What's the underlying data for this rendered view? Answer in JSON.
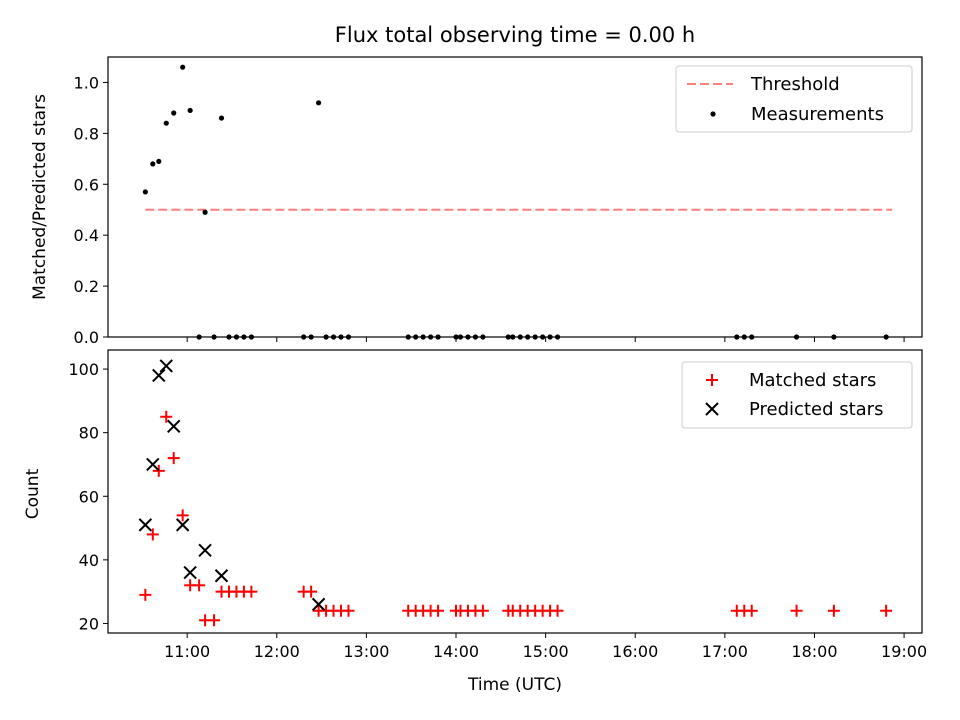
{
  "chart_data": [
    {
      "type": "scatter",
      "title": "Flux total observing time = 0.00 h",
      "xlabel": "",
      "ylabel": "Matched/Predicted stars",
      "ylim": [
        0,
        1.1
      ],
      "yticks": [
        "0.0",
        "0.2",
        "0.4",
        "0.6",
        "0.8",
        "1.0"
      ],
      "ytick_values": [
        0,
        0.2,
        0.4,
        0.6,
        0.8,
        1.0
      ],
      "xlim": [
        "10:07",
        "19:12"
      ],
      "xtick_values": [
        "11:00",
        "12:00",
        "13:00",
        "14:00",
        "15:00",
        "16:00",
        "17:00",
        "18:00",
        "19:00"
      ],
      "legend_position": "top-right",
      "series": [
        {
          "name": "Threshold",
          "style": "dashed-line",
          "color": "#ff7f7f",
          "x": [
            "10:32",
            "18:52"
          ],
          "y": [
            0.5,
            0.5
          ]
        },
        {
          "name": "Measurements",
          "style": "dot",
          "color": "#000000",
          "x": [
            "10:32",
            "10:37",
            "10:41",
            "10:46",
            "10:51",
            "10:57",
            "11:02",
            "11:08",
            "11:12",
            "11:18",
            "11:23",
            "11:28",
            "11:33",
            "11:38",
            "11:43",
            "12:18",
            "12:23",
            "12:28",
            "12:33",
            "12:38",
            "12:43",
            "12:48",
            "13:28",
            "13:33",
            "13:38",
            "13:43",
            "13:48",
            "14:00",
            "14:03",
            "14:08",
            "14:13",
            "14:18",
            "14:35",
            "14:38",
            "14:43",
            "14:48",
            "14:53",
            "14:58",
            "15:03",
            "15:08",
            "17:08",
            "17:13",
            "17:18",
            "17:48",
            "18:13",
            "18:48"
          ],
          "y": [
            0.57,
            0.68,
            0.69,
            0.84,
            0.88,
            1.06,
            0.89,
            0,
            0.49,
            0,
            0.86,
            0,
            0,
            0,
            0,
            0,
            0,
            0.92,
            0,
            0,
            0,
            0,
            0,
            0,
            0,
            0,
            0,
            0,
            0,
            0,
            0,
            0,
            0,
            0,
            0,
            0,
            0,
            0,
            0,
            0,
            0,
            0,
            0,
            0,
            0,
            0
          ]
        }
      ]
    },
    {
      "type": "scatter",
      "title": "",
      "xlabel": "Time (UTC)",
      "ylabel": "Count",
      "ylim": [
        17,
        106
      ],
      "yticks": [
        "20",
        "40",
        "60",
        "80",
        "100"
      ],
      "ytick_values": [
        20,
        40,
        60,
        80,
        100
      ],
      "xlim": [
        "10:07",
        "19:12"
      ],
      "xticks": [
        "11:00",
        "12:00",
        "13:00",
        "14:00",
        "15:00",
        "16:00",
        "17:00",
        "18:00",
        "19:00"
      ],
      "legend_position": "top-right",
      "series": [
        {
          "name": "Matched stars",
          "style": "plus",
          "color": "#ff0000",
          "x": [
            "10:32",
            "10:37",
            "10:41",
            "10:46",
            "10:51",
            "10:57",
            "11:02",
            "11:08",
            "11:12",
            "11:18",
            "11:23",
            "11:28",
            "11:33",
            "11:38",
            "11:43",
            "12:18",
            "12:23",
            "12:28",
            "12:33",
            "12:38",
            "12:43",
            "12:48",
            "13:28",
            "13:33",
            "13:38",
            "13:43",
            "13:48",
            "14:00",
            "14:03",
            "14:08",
            "14:13",
            "14:18",
            "14:35",
            "14:38",
            "14:43",
            "14:48",
            "14:53",
            "14:58",
            "15:03",
            "15:08",
            "17:08",
            "17:13",
            "17:18",
            "17:48",
            "18:13",
            "18:48"
          ],
          "y": [
            29,
            48,
            68,
            85,
            72,
            54,
            32,
            32,
            21,
            21,
            30,
            30,
            30,
            30,
            30,
            30,
            30,
            24,
            24,
            24,
            24,
            24,
            24,
            24,
            24,
            24,
            24,
            24,
            24,
            24,
            24,
            24,
            24,
            24,
            24,
            24,
            24,
            24,
            24,
            24,
            24,
            24,
            24,
            24,
            24,
            24
          ]
        },
        {
          "name": "Predicted stars",
          "style": "x",
          "color": "#000000",
          "x": [
            "10:32",
            "10:37",
            "10:41",
            "10:46",
            "10:51",
            "10:57",
            "11:02",
            "11:12",
            "11:23",
            "12:28"
          ],
          "y": [
            51,
            70,
            98,
            101,
            82,
            51,
            36,
            43,
            35,
            26
          ]
        }
      ]
    }
  ]
}
